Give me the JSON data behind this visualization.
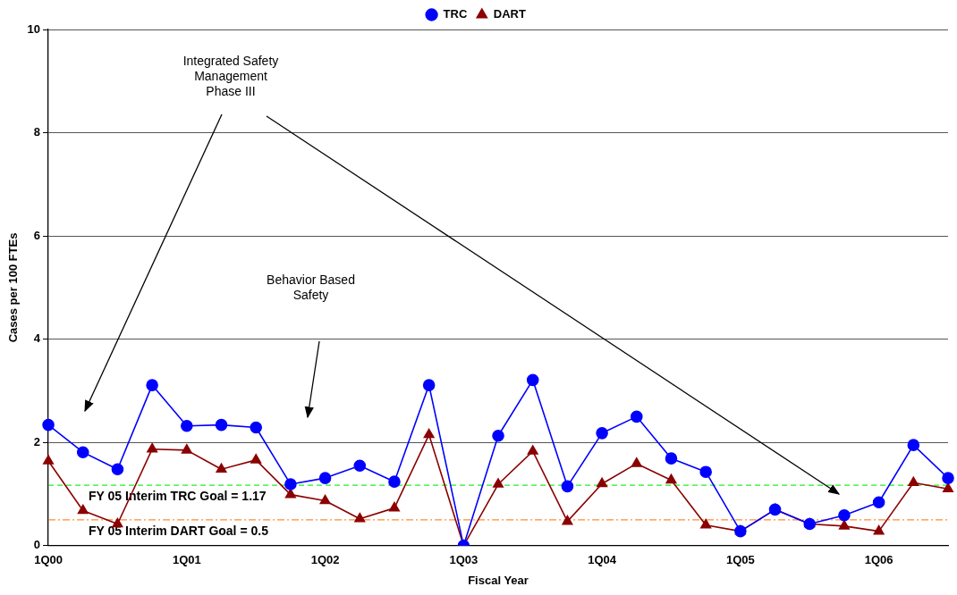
{
  "chart_data": {
    "type": "line",
    "xlabel": "Fiscal Year",
    "ylabel": "Cases per 100 FTEs",
    "categories": [
      "1Q00",
      null,
      null,
      null,
      "1Q01",
      null,
      null,
      null,
      "1Q02",
      null,
      null,
      null,
      "1Q03",
      null,
      null,
      null,
      "1Q04",
      null,
      null,
      null,
      "1Q05",
      null,
      null,
      null,
      "1Q06",
      null,
      null
    ],
    "series": [
      {
        "name": "TRC",
        "color": "#0000ff",
        "marker": "circle",
        "values": [
          2.34,
          1.81,
          1.48,
          3.11,
          2.32,
          2.34,
          2.29,
          1.19,
          1.31,
          1.55,
          1.24,
          3.11,
          0,
          2.13,
          3.21,
          1.15,
          2.18,
          2.5,
          1.69,
          1.43,
          0.28,
          0.7,
          0.42,
          0.59,
          0.84,
          1.95,
          1.31
        ]
      },
      {
        "name": "DART",
        "color": "#8b0000",
        "marker": "triangle",
        "values": [
          1.64,
          0.68,
          0.42,
          1.87,
          1.85,
          1.48,
          1.66,
          0.99,
          0.87,
          0.52,
          0.73,
          2.15,
          0,
          1.19,
          1.83,
          0.47,
          1.2,
          1.59,
          1.27,
          0.4,
          0.28,
          0.7,
          0.42,
          0.38,
          0.28,
          1.22,
          1.1
        ]
      }
    ],
    "ylim": [
      0,
      10
    ],
    "yticks": [
      0,
      2,
      4,
      6,
      8,
      10
    ],
    "grid": "y",
    "legend": "top",
    "line_style": "solid",
    "ref_lines": [
      {
        "axis": "y",
        "value": 1.17,
        "label": "FY 05 Interim TRC Goal = 1.17",
        "color": "#22ee22",
        "line_style": "dashed"
      },
      {
        "axis": "y",
        "value": 0.5,
        "label": "FY 05 Interim DART Goal = 0.5",
        "color": "#ff8c33",
        "line_style": "dashdot"
      }
    ],
    "annotations": [
      "Integrated Safety Management Phase III",
      "Behavior Based Safety"
    ]
  }
}
